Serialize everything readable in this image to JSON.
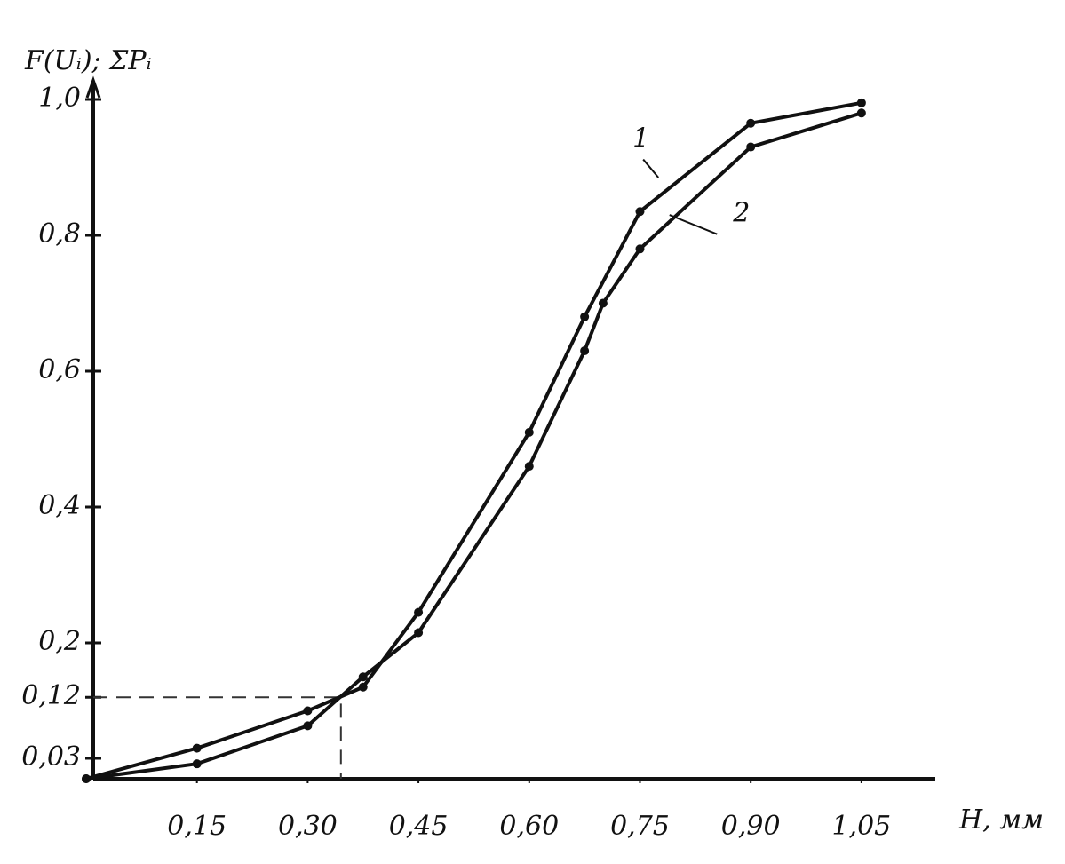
{
  "chart_data": {
    "type": "line",
    "y_label": "F(Uᵢ); ΣPᵢ",
    "x_label": "H, мм",
    "xlim": [
      0,
      1.15
    ],
    "ylim": [
      0,
      1.0
    ],
    "xticks": [
      {
        "value": 0.15,
        "label": "0,15"
      },
      {
        "value": 0.3,
        "label": "0,30"
      },
      {
        "value": 0.45,
        "label": "0,45"
      },
      {
        "value": 0.6,
        "label": "0,60"
      },
      {
        "value": 0.75,
        "label": "0,75"
      },
      {
        "value": 0.9,
        "label": "0,90"
      },
      {
        "value": 1.05,
        "label": "1,05"
      }
    ],
    "yticks": [
      {
        "value": 0.03,
        "label": "0,03"
      },
      {
        "value": 0.12,
        "label": "0,12"
      },
      {
        "value": 0.2,
        "label": "0,2"
      },
      {
        "value": 0.4,
        "label": "0,4"
      },
      {
        "value": 0.6,
        "label": "0,6"
      },
      {
        "value": 0.8,
        "label": "0,8"
      },
      {
        "value": 1.0,
        "label": "1,0"
      }
    ],
    "reference_point": {
      "x": 0.345,
      "y": 0.12
    },
    "series": [
      {
        "name": "1",
        "color": "#111111",
        "x": [
          0.0,
          0.15,
          0.3,
          0.375,
          0.45,
          0.6,
          0.675,
          0.75,
          0.9,
          1.05
        ],
        "values": [
          0.0,
          0.045,
          0.1,
          0.135,
          0.245,
          0.51,
          0.68,
          0.835,
          0.965,
          0.995
        ]
      },
      {
        "name": "2",
        "color": "#111111",
        "x": [
          0.0,
          0.15,
          0.3,
          0.375,
          0.45,
          0.6,
          0.675,
          0.7,
          0.75,
          0.9,
          1.05
        ],
        "values": [
          0.0,
          0.022,
          0.078,
          0.15,
          0.215,
          0.46,
          0.63,
          0.7,
          0.78,
          0.93,
          0.98
        ]
      }
    ]
  }
}
